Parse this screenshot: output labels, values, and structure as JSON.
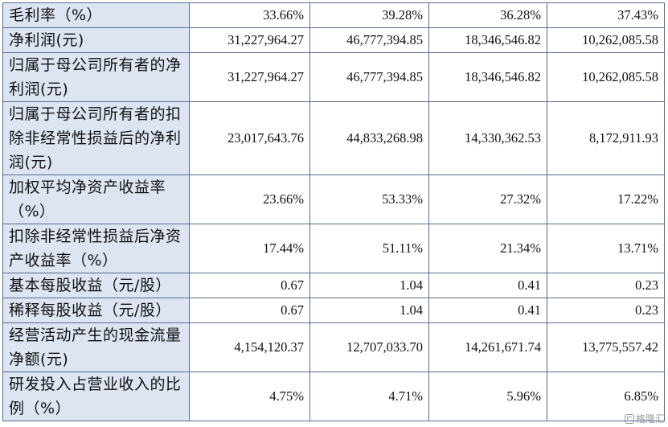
{
  "rows": [
    {
      "label": "毛利率（%）",
      "values": [
        "33.66%",
        "39.28%",
        "36.28%",
        "37.43%"
      ]
    },
    {
      "label": "净利润(元)",
      "values": [
        "31,227,964.27",
        "46,777,394.85",
        "18,346,546.82",
        "10,262,085.58"
      ]
    },
    {
      "label": "归属于母公司所有者的净利润(元)",
      "values": [
        "31,227,964.27",
        "46,777,394.85",
        "18,346,546.82",
        "10,262,085.58"
      ]
    },
    {
      "label": "归属于母公司所有者的扣除非经常性损益后的净利润(元)",
      "values": [
        "23,017,643.76",
        "44,833,268.98",
        "14,330,362.53",
        "8,172,911.93"
      ]
    },
    {
      "label": "加权平均净资产收益率（%）",
      "values": [
        "23.66%",
        "53.33%",
        "27.32%",
        "17.22%"
      ]
    },
    {
      "label": "扣除非经常性损益后净资产收益率（%）",
      "values": [
        "17.44%",
        "51.11%",
        "21.34%",
        "13.71%"
      ]
    },
    {
      "label": "基本每股收益（元/股）",
      "values": [
        "0.67",
        "1.04",
        "0.41",
        "0.23"
      ]
    },
    {
      "label": "稀释每股收益（元/股）",
      "values": [
        "0.67",
        "1.04",
        "0.41",
        "0.23"
      ]
    },
    {
      "label": "经营活动产生的现金流量净额(元)",
      "values": [
        "4,154,120.37",
        "12,707,033.70",
        "14,261,671.74",
        "13,775,557.42"
      ]
    },
    {
      "label": "研发投入占营业收入的比例（%）",
      "values": [
        "4.75%",
        "4.71%",
        "5.96%",
        "6.85%"
      ]
    }
  ],
  "watermark": {
    "icon": "logo-icon",
    "text": "格隆汇"
  }
}
